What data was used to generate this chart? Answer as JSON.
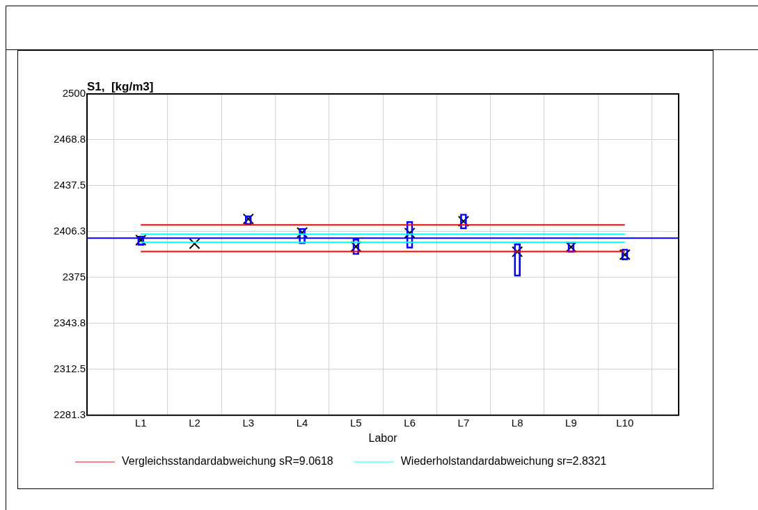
{
  "chart_data": {
    "type": "bar",
    "title": "S1,  [kg/m3]",
    "xlabel": "Labor",
    "categories": [
      "L1",
      "L2",
      "L3",
      "L4",
      "L5",
      "L6",
      "L7",
      "L8",
      "L9",
      "L10"
    ],
    "series": [
      {
        "color": "#0000ff",
        "base": [
          2396.9,
          null,
          2410.9,
          2398.0,
          2390.6,
          2394.9,
          2408.0,
          2375.9,
          2392.2,
          2387.0
        ],
        "values": [
          6.5,
          null,
          6.3,
          10.5,
          10.7,
          18.4,
          10.3,
          22.2,
          7.0,
          7.5
        ]
      },
      {
        "type": "scatter",
        "color": "#000000",
        "marker": "cross",
        "x": [
          "L1",
          "L2",
          "L3",
          "L4",
          "L5",
          "L6",
          "L7",
          "L8",
          "L9",
          "L10"
        ],
        "values": [
          2400.5,
          2398.1,
          2414.9,
          2405.6,
          2396.1,
          2405.3,
          2413.3,
          2392.6,
          2395.8,
          2390.6
        ]
      },
      {
        "type": "line",
        "name": "Vergleichsstandardabweichung sR=9.0618",
        "color": "#ff0000",
        "values": [
          2410.9,
          2410.9,
          2410.9,
          2410.9,
          2410.9,
          2410.9,
          2410.9,
          2410.9,
          2410.9,
          2410.9
        ]
      },
      {
        "type": "line",
        "color": "#ff0000",
        "values": [
          2392.7,
          2392.7,
          2392.7,
          2392.7,
          2392.7,
          2392.7,
          2392.7,
          2392.7,
          2392.7,
          2392.7
        ]
      },
      {
        "type": "line",
        "name": "Wiederholstandardabweichung sr=2.8321",
        "color": "#00ffff",
        "values": [
          2404.6,
          2404.6,
          2404.6,
          2404.6,
          2404.6,
          2404.6,
          2404.6,
          2404.6,
          2404.6,
          2404.6
        ]
      },
      {
        "type": "line",
        "color": "#00ffff",
        "values": [
          2399.0,
          2399.0,
          2399.0,
          2399.0,
          2399.0,
          2399.0,
          2399.0,
          2399.0,
          2399.0,
          2399.0
        ]
      }
    ],
    "ylim": [
      2281.3,
      2500
    ],
    "yticks": [
      2281.3,
      2312.5,
      2343.8,
      2375,
      2406.3,
      2437.5,
      2468.8,
      2500
    ],
    "grid": true,
    "legend": "bottom",
    "ref_lines": [
      {
        "axis": "y",
        "value": 2401.8,
        "color": "#0000ff"
      }
    ]
  }
}
